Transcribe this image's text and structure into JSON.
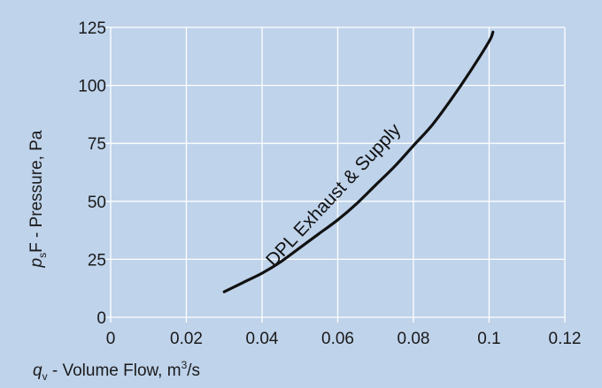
{
  "chart_data": {
    "type": "line",
    "x_axis": {
      "symbol": "q",
      "subscript": "v",
      "label": " - Volume Flow, m",
      "superscript": "3",
      "suffix": "/s",
      "range": [
        0,
        0.12
      ],
      "ticks": [
        "0",
        "0.02",
        "0.04",
        "0.06",
        "0.08",
        "0.1",
        "0.12"
      ],
      "tick_values": [
        0,
        0.02,
        0.04,
        0.06,
        0.08,
        0.1,
        0.12
      ]
    },
    "y_axis": {
      "symbol": "p",
      "subscript": "s",
      "label": "F - Pressure, Pa",
      "range": [
        0,
        125
      ],
      "ticks": [
        "0",
        "25",
        "50",
        "75",
        "100",
        "125"
      ],
      "tick_values": [
        0,
        25,
        50,
        75,
        100,
        125
      ]
    },
    "grid": true,
    "series": [
      {
        "name": "DPL Exhaust & Supply",
        "color": "#111111",
        "x": [
          0.03,
          0.035,
          0.04,
          0.045,
          0.05,
          0.055,
          0.06,
          0.065,
          0.07,
          0.075,
          0.08,
          0.085,
          0.09,
          0.095,
          0.1,
          0.101
        ],
        "y": [
          11,
          15,
          19,
          24,
          30,
          36,
          42,
          49,
          57,
          65,
          74,
          83,
          94,
          106,
          119,
          123
        ]
      }
    ],
    "colors": {
      "background": "#bfd3eb",
      "grid": "#ffffff",
      "curve": "#111111",
      "text": "#1a1a1a"
    }
  }
}
